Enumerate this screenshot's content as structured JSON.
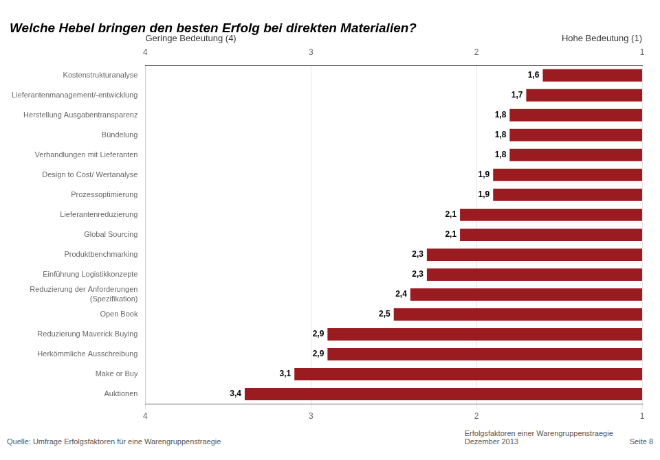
{
  "chart_data": {
    "type": "bar",
    "orientation": "horizontal",
    "title": "Welche Hebel bringen den besten Erfolg bei direkten Materialien?",
    "categories": [
      "Auktionen",
      "Make or Buy",
      "Herkömmliche Ausschreibung",
      "Reduzierung Maverick Buying",
      "Open Book",
      "Reduzierung der Anforderungen\n(Spezifikation)",
      "Einführung Logistikkonzepte",
      "Produktbenchmarking",
      "Global Sourcing",
      "Lieferantenreduzierung",
      "Prozessoptimierung",
      "Design to Cost/ Wertanalyse",
      "Verhandlungen mit Lieferanten",
      "Bündelung",
      "Herstellung Ausgabentransparenz",
      "Lieferantenmanagement/-entwicklung",
      "Kostenstrukturanalyse"
    ],
    "values": [
      3.4,
      3.1,
      2.9,
      2.9,
      2.5,
      2.4,
      2.3,
      2.3,
      2.1,
      2.1,
      1.9,
      1.9,
      1.8,
      1.8,
      1.8,
      1.7,
      1.6
    ],
    "value_labels": [
      "3,4",
      "3,1",
      "2,9",
      "2,9",
      "2,5",
      "2,4",
      "2,3",
      "2,3",
      "2,1",
      "2,1",
      "1,9",
      "1,9",
      "1,8",
      "1,8",
      "1,8",
      "1,7",
      "1,6"
    ],
    "data_labels": true,
    "color": "#9B1C20",
    "xlim": [
      4,
      1
    ],
    "xticks": [
      4,
      3,
      2,
      1
    ],
    "grid": true,
    "annotations": [
      "Geringe Bedeutung (4)",
      "Hohe Bedeutung (1)"
    ],
    "footer": [
      "Quelle:  Umfrage  Erfolgsfaktoren für eine Warengruppenstraegie",
      "Erfolgsfaktoren einer Warengruppenstraegie",
      "Dezember 2013",
      "Seite 8"
    ]
  }
}
